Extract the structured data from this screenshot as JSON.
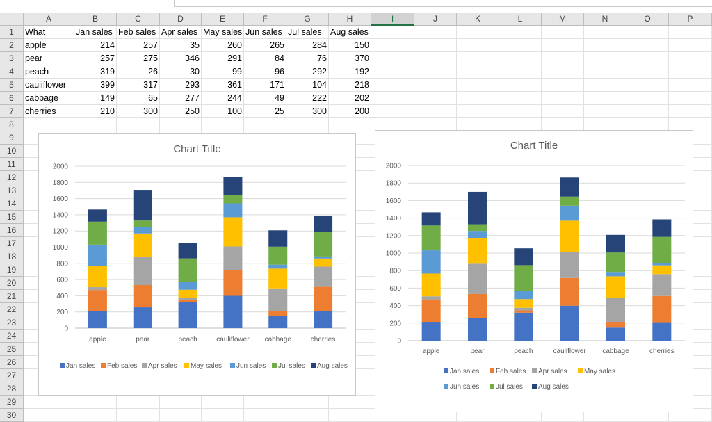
{
  "sheet": {
    "columns": [
      "A",
      "B",
      "C",
      "D",
      "E",
      "F",
      "G",
      "H",
      "I",
      "J",
      "K",
      "L",
      "M",
      "N",
      "O",
      "P"
    ],
    "selected_column": "I",
    "rows": [
      "1",
      "2",
      "3",
      "4",
      "5",
      "6",
      "7",
      "8",
      "9",
      "10",
      "11",
      "12",
      "13",
      "14",
      "15",
      "16",
      "17",
      "18",
      "19",
      "20",
      "21",
      "22",
      "23",
      "24",
      "25",
      "26",
      "27",
      "28",
      "29",
      "30"
    ],
    "header_row": [
      "What",
      "Jan sales",
      "Feb sales",
      "Apr sales",
      "May sales",
      "Jun sales",
      "Jul sales",
      "Aug sales"
    ],
    "data_rows": [
      [
        "apple",
        "214",
        "257",
        "35",
        "260",
        "265",
        "284",
        "150"
      ],
      [
        "pear",
        "257",
        "275",
        "346",
        "291",
        "84",
        "76",
        "370"
      ],
      [
        "peach",
        "319",
        "26",
        "30",
        "99",
        "96",
        "292",
        "192"
      ],
      [
        "cauliflower",
        "399",
        "317",
        "293",
        "361",
        "171",
        "104",
        "218"
      ],
      [
        "cabbage",
        "149",
        "65",
        "277",
        "244",
        "49",
        "222",
        "202"
      ],
      [
        "cherries",
        "210",
        "300",
        "250",
        "100",
        "25",
        "300",
        "200"
      ]
    ]
  },
  "chart_data": [
    {
      "type": "bar",
      "stacked": true,
      "title": "Chart Title",
      "categories": [
        "apple",
        "pear",
        "peach",
        "cauliflower",
        "cabbage",
        "cherries"
      ],
      "ylim": [
        0,
        2000
      ],
      "yticks": [
        "0",
        "200",
        "400",
        "600",
        "800",
        "1000",
        "1200",
        "1400",
        "1600",
        "1800",
        "2000"
      ],
      "grid": true,
      "legend": "bottom",
      "series": [
        {
          "name": "Jan sales",
          "color": "#4472c4",
          "values": [
            214,
            257,
            319,
            399,
            149,
            210
          ]
        },
        {
          "name": "Feb sales",
          "color": "#ed7d31",
          "values": [
            257,
            275,
            26,
            317,
            65,
            300
          ]
        },
        {
          "name": "Apr sales",
          "color": "#a5a5a5",
          "values": [
            35,
            346,
            30,
            293,
            277,
            250
          ]
        },
        {
          "name": "May sales",
          "color": "#ffc000",
          "values": [
            260,
            291,
            99,
            361,
            244,
            100
          ]
        },
        {
          "name": "Jun sales",
          "color": "#5b9bd5",
          "values": [
            265,
            84,
            96,
            171,
            49,
            25
          ]
        },
        {
          "name": "Jul sales",
          "color": "#70ad47",
          "values": [
            284,
            76,
            292,
            104,
            222,
            300
          ]
        },
        {
          "name": "Aug sales",
          "color": "#264478",
          "values": [
            150,
            370,
            192,
            218,
            202,
            200
          ]
        }
      ]
    },
    {
      "type": "bar",
      "stacked": true,
      "title": "Chart Title",
      "categories": [
        "apple",
        "pear",
        "peach",
        "cauliflower",
        "cabbage",
        "cherries"
      ],
      "ylim": [
        0,
        2000
      ],
      "yticks": [
        "0",
        "200",
        "400",
        "600",
        "800",
        "1000",
        "1200",
        "1400",
        "1600",
        "1800",
        "2000"
      ],
      "grid": true,
      "legend": "bottom",
      "series": [
        {
          "name": "Jan sales",
          "color": "#4472c4",
          "values": [
            214,
            257,
            319,
            399,
            149,
            210
          ]
        },
        {
          "name": "Feb sales",
          "color": "#ed7d31",
          "values": [
            257,
            275,
            26,
            317,
            65,
            300
          ]
        },
        {
          "name": "Apr sales",
          "color": "#a5a5a5",
          "values": [
            35,
            346,
            30,
            293,
            277,
            250
          ]
        },
        {
          "name": "May sales",
          "color": "#ffc000",
          "values": [
            260,
            291,
            99,
            361,
            244,
            100
          ]
        },
        {
          "name": "Jun sales",
          "color": "#5b9bd5",
          "values": [
            265,
            84,
            96,
            171,
            49,
            25
          ]
        },
        {
          "name": "Jul sales",
          "color": "#70ad47",
          "values": [
            284,
            76,
            292,
            104,
            222,
            300
          ]
        },
        {
          "name": "Aug sales",
          "color": "#264478",
          "values": [
            150,
            370,
            192,
            218,
            202,
            200
          ]
        }
      ]
    }
  ]
}
